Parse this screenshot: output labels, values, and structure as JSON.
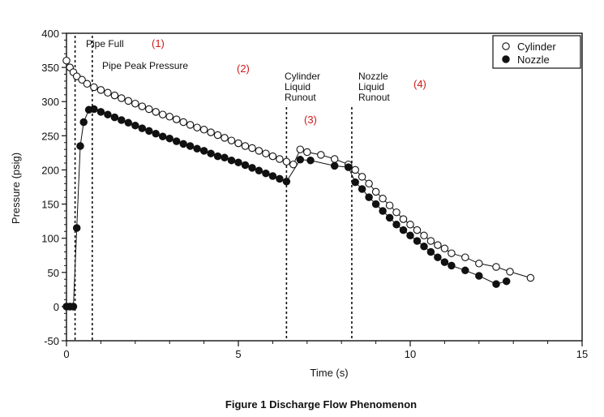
{
  "chart_data": {
    "type": "scatter",
    "caption": "Figure 1  Discharge Flow Phenomenon",
    "xlabel": "Time (s)",
    "ylabel": "Pressure (psig)",
    "xlim": [
      0,
      15
    ],
    "ylim": [
      -50,
      400
    ],
    "x_ticks": [
      "0",
      "5",
      "10",
      "15"
    ],
    "y_ticks": [
      "-50",
      "0",
      "50",
      "100",
      "150",
      "200",
      "250",
      "300",
      "350",
      "400"
    ],
    "grid": false,
    "legend_position": "top-right",
    "series": [
      {
        "name": "Cylinder",
        "marker": "open-circle",
        "color": "#111111",
        "x": [
          0.0,
          0.1,
          0.2,
          0.3,
          0.45,
          0.6,
          0.8,
          1.0,
          1.2,
          1.4,
          1.6,
          1.8,
          2.0,
          2.2,
          2.4,
          2.6,
          2.8,
          3.0,
          3.2,
          3.4,
          3.6,
          3.8,
          4.0,
          4.2,
          4.4,
          4.6,
          4.8,
          5.0,
          5.2,
          5.4,
          5.6,
          5.8,
          6.0,
          6.2,
          6.4,
          6.6,
          6.8,
          7.0,
          7.4,
          7.8,
          8.2,
          8.4,
          8.6,
          8.8,
          9.0,
          9.2,
          9.4,
          9.6,
          9.8,
          10.0,
          10.2,
          10.4,
          10.6,
          10.8,
          11.0,
          11.2,
          11.6,
          12.0,
          12.5,
          12.9,
          13.5
        ],
        "values": [
          360,
          350,
          343,
          337,
          332,
          326,
          321,
          317,
          313,
          309,
          305,
          301,
          297,
          293,
          289,
          285,
          281,
          278,
          274,
          270,
          266,
          262,
          259,
          255,
          251,
          247,
          243,
          239,
          235,
          232,
          228,
          224,
          220,
          216,
          212,
          208,
          230,
          226,
          222,
          216,
          208,
          200,
          190,
          180,
          168,
          158,
          148,
          138,
          128,
          120,
          112,
          104,
          96,
          90,
          85,
          78,
          72,
          63,
          58,
          51,
          42
        ]
      },
      {
        "name": "Nozzle",
        "marker": "filled-circle",
        "color": "#111111",
        "x": [
          0.0,
          0.1,
          0.2,
          0.3,
          0.4,
          0.5,
          0.65,
          0.8,
          1.0,
          1.2,
          1.4,
          1.6,
          1.8,
          2.0,
          2.2,
          2.4,
          2.6,
          2.8,
          3.0,
          3.2,
          3.4,
          3.6,
          3.8,
          4.0,
          4.2,
          4.4,
          4.6,
          4.8,
          5.0,
          5.2,
          5.4,
          5.6,
          5.8,
          6.0,
          6.2,
          6.4,
          6.8,
          7.1,
          7.8,
          8.2,
          8.4,
          8.6,
          8.8,
          9.0,
          9.2,
          9.4,
          9.6,
          9.8,
          10.0,
          10.2,
          10.4,
          10.6,
          10.8,
          11.0,
          11.2,
          11.6,
          12.0,
          12.5,
          12.8
        ],
        "values": [
          0,
          0,
          0,
          115,
          235,
          270,
          288,
          289,
          285,
          281,
          277,
          273,
          269,
          265,
          261,
          257,
          253,
          249,
          246,
          242,
          238,
          235,
          231,
          228,
          224,
          220,
          218,
          214,
          211,
          207,
          203,
          199,
          195,
          191,
          187,
          183,
          215,
          214,
          206,
          204,
          182,
          172,
          160,
          150,
          140,
          130,
          120,
          112,
          104,
          96,
          88,
          80,
          72,
          65,
          60,
          53,
          45,
          33,
          37
        ]
      }
    ],
    "annotations": [
      {
        "x": 0.25,
        "label_lines": [
          "Pipe Full"
        ],
        "number": "(1)"
      },
      {
        "x": 0.75,
        "label_lines": [
          "Pipe Peak Pressure"
        ],
        "number": "(2)"
      },
      {
        "x": 6.4,
        "label_lines": [
          "Cylinder",
          "Liquid",
          "Runout"
        ],
        "number": "(3)"
      },
      {
        "x": 8.3,
        "label_lines": [
          "Nozzle",
          "Liquid",
          "Runout"
        ],
        "number": "(4)"
      }
    ]
  }
}
